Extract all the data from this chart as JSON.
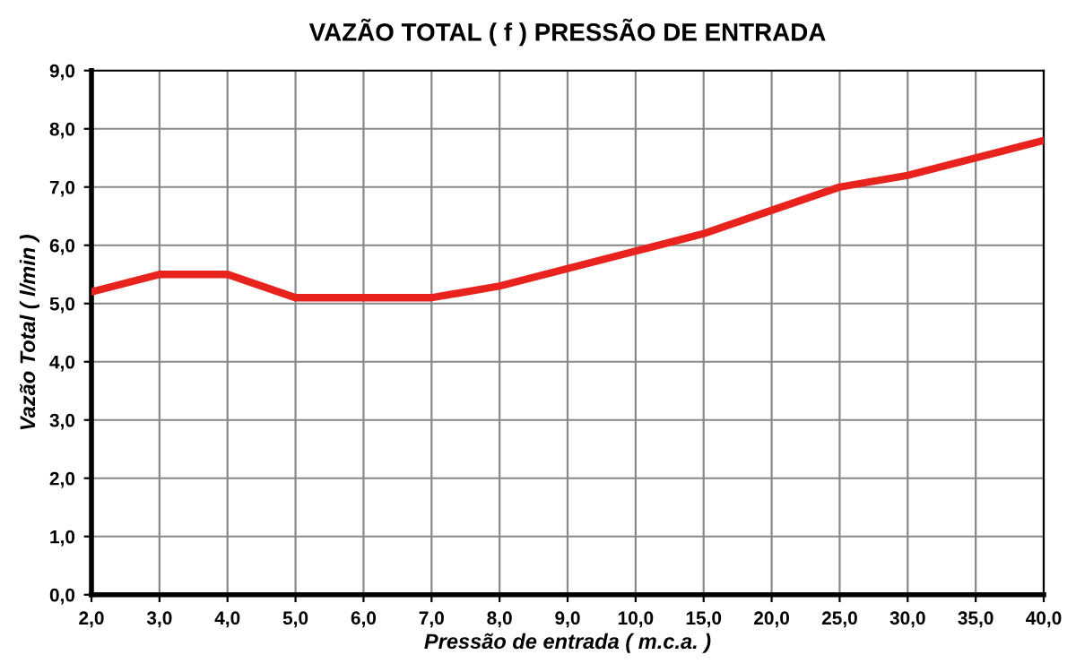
{
  "chart_data": {
    "type": "line",
    "title": "VAZÃO TOTAL ( f ) PRESSÃO DE ENTRADA",
    "xlabel": "Pressão de entrada ( m.c.a. )",
    "ylabel": "Vazão Total ( l/min )",
    "categories": [
      "2,0",
      "3,0",
      "4,0",
      "5,0",
      "6,0",
      "7,0",
      "8,0",
      "9,0",
      "10,0",
      "15,0",
      "20,0",
      "25,0",
      "30,0",
      "35,0",
      "40,0"
    ],
    "series": [
      {
        "color": "#e8221c",
        "values": [
          5.2,
          5.5,
          5.5,
          5.1,
          5.1,
          5.1,
          5.3,
          5.6,
          5.9,
          6.2,
          6.6,
          7.0,
          7.2,
          7.5,
          7.8
        ]
      }
    ],
    "ylim": [
      0,
      9
    ],
    "yticks": [
      {
        "value": 0,
        "label": "0,0"
      },
      {
        "value": 1,
        "label": "1,0"
      },
      {
        "value": 2,
        "label": "2,0"
      },
      {
        "value": 3,
        "label": "3,0"
      },
      {
        "value": 4,
        "label": "4,0"
      },
      {
        "value": 5,
        "label": "5,0"
      },
      {
        "value": 6,
        "label": "6,0"
      },
      {
        "value": 7,
        "label": "7,0"
      },
      {
        "value": 8,
        "label": "8,0"
      },
      {
        "value": 9,
        "label": "9,0"
      }
    ],
    "grid": true,
    "marker": "none",
    "line_style": "solid"
  }
}
